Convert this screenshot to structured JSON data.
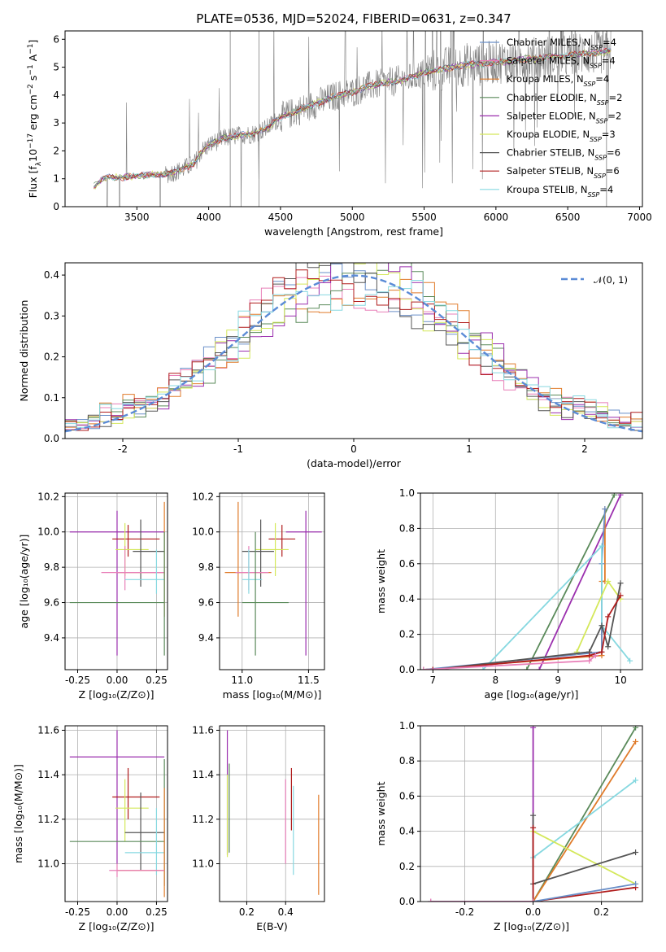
{
  "title": "PLATE=0536, MJD=52024, FIBERID=0631, z=0.347",
  "models": [
    {
      "name": "Chabrier MILES",
      "nssp": "4",
      "color": "#6a8fc8"
    },
    {
      "name": "Salpeter MILES",
      "nssp": "4",
      "color": "#e87fb8"
    },
    {
      "name": "Kroupa MILES",
      "nssp": "4",
      "color": "#e07b2a"
    },
    {
      "name": "Chabrier ELODIE",
      "nssp": "2",
      "color": "#5a8a5a"
    },
    {
      "name": "Salpeter ELODIE",
      "nssp": "2",
      "color": "#9b2fae"
    },
    {
      "name": "Kroupa ELODIE",
      "nssp": "3",
      "color": "#d4e85a"
    },
    {
      "name": "Chabrier STELIB",
      "nssp": "6",
      "color": "#555555"
    },
    {
      "name": "Salpeter STELIB",
      "nssp": "6",
      "color": "#b01c1c"
    },
    {
      "name": "Kroupa STELIB",
      "nssp": "4",
      "color": "#86d8e0"
    }
  ],
  "chart_data": [
    {
      "type": "line",
      "xlabel": "wavelength [Angstrom, rest frame]",
      "ylabel_parts": [
        "Flux [f",
        "λ",
        "10",
        "−17",
        " erg cm",
        "−2",
        " s",
        "−1",
        " A",
        "−1",
        "]"
      ],
      "legend_prefix": "N",
      "legend_sub": "SSP",
      "xlim": [
        3000,
        7020
      ],
      "ylim": [
        0,
        6.3
      ],
      "xticks": [
        3500,
        4000,
        4500,
        5000,
        5500,
        6000,
        6500,
        7000
      ],
      "yticks": [
        0,
        1,
        2,
        3,
        4,
        5,
        6
      ],
      "spectrum_anchor_x": [
        3200,
        3260,
        3300,
        3400,
        3500,
        3600,
        3700,
        3800,
        3900,
        3950,
        4000,
        4100,
        4200,
        4300,
        4400,
        4500,
        4600,
        4700,
        4800,
        4900,
        5000,
        5100,
        5200,
        5300,
        5400,
        5500,
        5600,
        5700,
        5800,
        5900,
        6000,
        6100,
        6200,
        6300,
        6400,
        6500,
        6600,
        6700,
        6800
      ],
      "spectrum_anchor_y": [
        0.7,
        1.0,
        1.05,
        1.05,
        1.1,
        1.15,
        1.15,
        1.3,
        1.55,
        2.0,
        2.2,
        2.45,
        2.55,
        2.6,
        2.8,
        3.2,
        3.4,
        3.6,
        3.8,
        4.0,
        4.1,
        4.3,
        4.4,
        4.5,
        4.6,
        4.8,
        4.9,
        5.0,
        5.1,
        5.1,
        5.2,
        5.2,
        5.3,
        5.3,
        5.4,
        5.4,
        5.5,
        5.5,
        5.6
      ],
      "legend": "top-right",
      "grid": false
    },
    {
      "type": "histogram",
      "xlabel": "(data-model)/error",
      "ylabel": "Normed distribution",
      "xlim": [
        -2.5,
        2.5
      ],
      "ylim": [
        0,
        0.43
      ],
      "xticks": [
        -2,
        -1,
        0,
        1,
        2
      ],
      "yticks": [
        0.0,
        0.1,
        0.2,
        0.3,
        0.4
      ],
      "bin_width": 0.1,
      "curve_label": "𝒩(0, 1)",
      "curve_color": "#5b8bd6",
      "legend": "top-right",
      "grid": true
    },
    {
      "type": "scatter",
      "xlabel": "Z [log₁₀(Z/Z⊙)]",
      "ylabel": "age  [log₁₀(age/yr)]",
      "xlim": [
        -0.33,
        0.32
      ],
      "ylim": [
        9.22,
        10.22
      ],
      "xticks": [
        -0.25,
        0.0,
        0.25
      ],
      "yticks": [
        9.4,
        9.6,
        9.8,
        10.0,
        10.2
      ],
      "points": [
        {
          "model": "Salpeter ELODIE",
          "x": 0.0,
          "xerr": [
            0.3,
            0.3
          ],
          "y": 10.0,
          "yerr": [
            0.7,
            0.12
          ]
        },
        {
          "model": "Salpeter STELIB",
          "x": 0.07,
          "xerr": [
            0.1,
            0.2
          ],
          "y": 9.96,
          "yerr": [
            0.1,
            0.08
          ]
        },
        {
          "model": "Kroupa ELODIE",
          "x": 0.05,
          "xerr": [
            0.06,
            0.15
          ],
          "y": 9.9,
          "yerr": [
            0.15,
            0.15
          ]
        },
        {
          "model": "Chabrier STELIB",
          "x": 0.15,
          "xerr": [
            0.05,
            0.15
          ],
          "y": 9.89,
          "yerr": [
            0.2,
            0.18
          ]
        },
        {
          "model": "Kroupa MILES",
          "x": 0.3,
          "xerr": [
            0.3,
            0.0
          ],
          "y": 9.77,
          "yerr": [
            0.25,
            0.4
          ]
        },
        {
          "model": "Salpeter MILES",
          "x": 0.05,
          "xerr": [
            0.15,
            0.25
          ],
          "y": 9.77,
          "yerr": [
            0.1,
            0.15
          ]
        },
        {
          "model": "Kroupa STELIB",
          "x": 0.25,
          "xerr": [
            0.2,
            0.05
          ],
          "y": 9.73,
          "yerr": [
            0.08,
            0.17
          ]
        },
        {
          "model": "Chabrier ELODIE",
          "x": 0.3,
          "xerr": [
            0.6,
            0.0
          ],
          "y": 9.6,
          "yerr": [
            0.3,
            0.4
          ]
        }
      ]
    },
    {
      "type": "scatter",
      "xlabel": "mass [log₁₀(M/M⊙)]",
      "ylabel": "",
      "xlim": [
        10.83,
        11.62
      ],
      "ylim": [
        9.22,
        10.22
      ],
      "xticks": [
        11.0,
        11.5
      ],
      "yticks": [
        9.4,
        9.6,
        9.8,
        10.0,
        10.2
      ],
      "points": [
        {
          "model": "Salpeter ELODIE",
          "x": 11.48,
          "xerr": [
            0.15,
            0.12
          ],
          "y": 10.0,
          "yerr": [
            0.7,
            0.12
          ]
        },
        {
          "model": "Salpeter STELIB",
          "x": 11.3,
          "xerr": [
            0.1,
            0.1
          ],
          "y": 9.96,
          "yerr": [
            0.1,
            0.08
          ]
        },
        {
          "model": "Kroupa ELODIE",
          "x": 11.25,
          "xerr": [
            0.15,
            0.1
          ],
          "y": 9.9,
          "yerr": [
            0.15,
            0.15
          ]
        },
        {
          "model": "Chabrier STELIB",
          "x": 11.14,
          "xerr": [
            0.14,
            0.1
          ],
          "y": 9.89,
          "yerr": [
            0.2,
            0.18
          ]
        },
        {
          "model": "Kroupa MILES",
          "x": 10.97,
          "xerr": [
            0.1,
            0.25
          ],
          "y": 9.77,
          "yerr": [
            0.25,
            0.4
          ]
        },
        {
          "model": "Salpeter MILES",
          "x": 11.05,
          "xerr": [
            0.1,
            0.15
          ],
          "y": 9.77,
          "yerr": [
            0.1,
            0.15
          ]
        },
        {
          "model": "Kroupa STELIB",
          "x": 11.05,
          "xerr": [
            0.05,
            0.1
          ],
          "y": 9.73,
          "yerr": [
            0.08,
            0.17
          ]
        },
        {
          "model": "Chabrier ELODIE",
          "x": 11.1,
          "xerr": [
            0.1,
            0.25
          ],
          "y": 9.6,
          "yerr": [
            0.3,
            0.4
          ]
        }
      ]
    },
    {
      "type": "line",
      "xlabel": "age  [log₁₀(age/yr)]",
      "ylabel": "mass weight",
      "xlim": [
        6.8,
        10.35
      ],
      "ylim": [
        0,
        1.0
      ],
      "xticks": [
        7,
        8,
        9,
        10
      ],
      "yticks": [
        0.0,
        0.2,
        0.4,
        0.6,
        0.8,
        1.0
      ],
      "series": [
        {
          "model": "Chabrier ELODIE",
          "x": [
            8.5,
            9.9
          ],
          "y": [
            0.0,
            0.99
          ]
        },
        {
          "model": "Salpeter ELODIE",
          "x": [
            8.7,
            10.0
          ],
          "y": [
            0.0,
            0.99
          ]
        },
        {
          "model": "Kroupa MILES",
          "x": [
            6.85,
            9.7,
            9.7,
            9.75,
            9.75
          ],
          "y": [
            0.0,
            0.08,
            0.5,
            0.5,
            0.91
          ]
        },
        {
          "model": "Chabrier MILES",
          "x": [
            6.85,
            9.7,
            9.7,
            9.75
          ],
          "y": [
            0.0,
            0.1,
            0.6,
            0.91
          ]
        },
        {
          "model": "Kroupa STELIB",
          "x": [
            7.8,
            9.7,
            9.7,
            10.15
          ],
          "y": [
            0.0,
            0.7,
            0.25,
            0.05
          ]
        },
        {
          "model": "Kroupa ELODIE",
          "x": [
            9.3,
            9.8,
            10.0
          ],
          "y": [
            0.1,
            0.5,
            0.4
          ]
        },
        {
          "model": "Chabrier STELIB",
          "x": [
            7.0,
            9.5,
            9.7,
            9.8,
            10.0
          ],
          "y": [
            0.0,
            0.1,
            0.25,
            0.13,
            0.49
          ]
        },
        {
          "model": "Salpeter STELIB",
          "x": [
            7.0,
            9.5,
            9.7,
            9.8,
            10.0
          ],
          "y": [
            0.0,
            0.08,
            0.1,
            0.3,
            0.42
          ]
        },
        {
          "model": "Salpeter MILES",
          "x": [
            6.85,
            9.5,
            9.6
          ],
          "y": [
            0.0,
            0.05,
            0.08
          ]
        }
      ]
    },
    {
      "type": "scatter",
      "xlabel": "Z [log₁₀(Z/Z⊙)]",
      "ylabel": "mass [log₁₀(M/M⊙)]",
      "xlim": [
        -0.33,
        0.32
      ],
      "ylim": [
        10.83,
        11.62
      ],
      "xticks": [
        -0.25,
        0.0,
        0.25
      ],
      "yticks": [
        11.0,
        11.2,
        11.4,
        11.6
      ],
      "points": [
        {
          "model": "Salpeter ELODIE",
          "x": 0.0,
          "xerr": [
            0.3,
            0.3
          ],
          "y": 11.48,
          "yerr": [
            0.48,
            0.12
          ]
        },
        {
          "model": "Salpeter STELIB",
          "x": 0.07,
          "xerr": [
            0.1,
            0.2
          ],
          "y": 11.3,
          "yerr": [
            0.1,
            0.13
          ]
        },
        {
          "model": "Kroupa ELODIE",
          "x": 0.05,
          "xerr": [
            0.06,
            0.15
          ],
          "y": 11.25,
          "yerr": [
            0.15,
            0.13
          ]
        },
        {
          "model": "Chabrier STELIB",
          "x": 0.15,
          "xerr": [
            0.1,
            0.15
          ],
          "y": 11.14,
          "yerr": [
            0.17,
            0.18
          ]
        },
        {
          "model": "Chabrier ELODIE",
          "x": 0.3,
          "xerr": [
            0.6,
            0.0
          ],
          "y": 11.1,
          "yerr": [
            0.2,
            0.37
          ]
        },
        {
          "model": "Kroupa STELIB",
          "x": 0.25,
          "xerr": [
            0.2,
            0.05
          ],
          "y": 11.05,
          "yerr": [
            0.1,
            0.2
          ]
        },
        {
          "model": "Kroupa MILES",
          "x": 0.3,
          "xerr": [
            0.3,
            0.0
          ],
          "y": 10.97,
          "yerr": [
            0.12,
            0.37
          ]
        },
        {
          "model": "Salpeter MILES",
          "x": 0.0,
          "xerr": [
            0.05,
            0.3
          ],
          "y": 10.97,
          "yerr": [
            0.03,
            0.03
          ]
        }
      ]
    },
    {
      "type": "scatter",
      "xlabel": "E(B-V)",
      "ylabel": "",
      "xlim": [
        0.06,
        0.6
      ],
      "ylim": [
        10.83,
        11.62
      ],
      "xticks": [
        0.2,
        0.4
      ],
      "yticks": [
        11.0,
        11.2,
        11.4,
        11.6
      ],
      "points": [
        {
          "model": "Salpeter ELODIE",
          "x": 0.1,
          "y": 11.32,
          "yerr": [
            0.28,
            0.28
          ]
        },
        {
          "model": "Kroupa ELODIE",
          "x": 0.1,
          "y": 11.25,
          "yerr": [
            0.22,
            0.15
          ]
        },
        {
          "model": "Chabrier ELODIE",
          "x": 0.11,
          "y": 11.25,
          "yerr": [
            0.2,
            0.2
          ]
        },
        {
          "model": "Salpeter MILES",
          "x": 0.4,
          "y": 11.2,
          "yerr": [
            0.2,
            0.18
          ]
        },
        {
          "model": "Salpeter STELIB",
          "x": 0.43,
          "y": 11.3,
          "yerr": [
            0.15,
            0.13
          ]
        },
        {
          "model": "Kroupa STELIB",
          "x": 0.44,
          "y": 11.15,
          "yerr": [
            0.2,
            0.2
          ]
        },
        {
          "model": "Kroupa MILES",
          "x": 0.57,
          "y": 11.08,
          "yerr": [
            0.22,
            0.23
          ]
        }
      ]
    },
    {
      "type": "line",
      "xlabel": "Z [log₁₀(Z/Z⊙)]",
      "ylabel": "mass weight",
      "xlim": [
        -0.33,
        0.32
      ],
      "ylim": [
        0,
        1.0
      ],
      "xticks": [
        -0.2,
        0.0,
        0.2
      ],
      "yticks": [
        0.0,
        0.2,
        0.4,
        0.6,
        0.8,
        1.0
      ],
      "series": [
        {
          "model": "Salpeter ELODIE",
          "x": [
            -0.3,
            0.0,
            0.0
          ],
          "y": [
            0.0,
            0.0,
            0.99
          ]
        },
        {
          "model": "Chabrier ELODIE",
          "x": [
            0.0,
            0.3
          ],
          "y": [
            0.0,
            0.99
          ]
        },
        {
          "model": "Kroupa MILES",
          "x": [
            0.0,
            0.3
          ],
          "y": [
            0.0,
            0.91
          ]
        },
        {
          "model": "Kroupa STELIB",
          "x": [
            0.0,
            0.0,
            0.3
          ],
          "y": [
            0.0,
            0.25,
            0.69
          ]
        },
        {
          "model": "Kroupa ELODIE",
          "x": [
            0.0,
            0.3
          ],
          "y": [
            0.4,
            0.1
          ]
        },
        {
          "model": "Chabrier STELIB",
          "x": [
            0.0,
            0.0,
            0.3
          ],
          "y": [
            0.49,
            0.1,
            0.28
          ]
        },
        {
          "model": "Salpeter STELIB",
          "x": [
            0.0,
            0.0,
            0.3
          ],
          "y": [
            0.42,
            0.0,
            0.08
          ]
        },
        {
          "model": "Chabrier MILES",
          "x": [
            0.0,
            0.3
          ],
          "y": [
            0.0,
            0.1
          ]
        },
        {
          "model": "Salpeter MILES",
          "x": [
            -0.3,
            0.0
          ],
          "y": [
            0.0,
            0.0
          ]
        }
      ]
    }
  ]
}
